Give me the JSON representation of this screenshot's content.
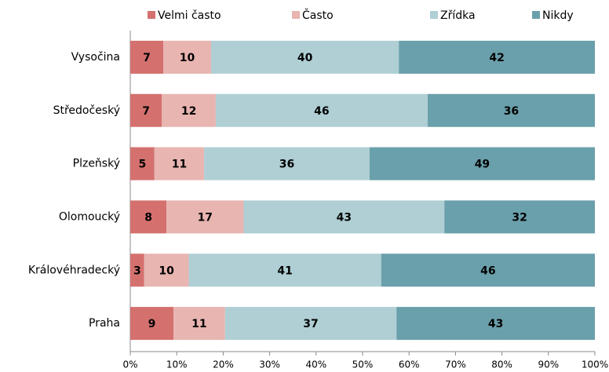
{
  "chart_data": {
    "type": "stacked_bar_horizontal",
    "categories": [
      "Vysočina",
      "Středočeský",
      "Plzeňský",
      "Olomoucký",
      "Královéhradecký",
      "Praha"
    ],
    "series": [
      {
        "name": "Velmi často",
        "color": "#d4716f",
        "values": [
          7.1,
          6.8,
          5.2,
          7.8,
          3.0,
          9.3
        ],
        "value_labels": [
          "7",
          "7",
          "5",
          "8",
          "3",
          "9"
        ]
      },
      {
        "name": "Často",
        "color": "#e8b5b1",
        "values": [
          10.3,
          11.6,
          10.7,
          16.6,
          9.6,
          11.1
        ],
        "value_labels": [
          "10",
          "12",
          "11",
          "17",
          "10",
          "11"
        ]
      },
      {
        "name": "Zřídka",
        "color": "#afcfd5",
        "values": [
          40.4,
          45.6,
          35.6,
          43.2,
          41.4,
          36.9
        ],
        "value_labels": [
          "40",
          "46",
          "36",
          "43",
          "41",
          "37"
        ]
      },
      {
        "name": "Nikdy",
        "color": "#6aa0ab",
        "values": [
          42.2,
          36.0,
          48.5,
          32.4,
          46.0,
          42.7
        ],
        "value_labels": [
          "42",
          "36",
          "49",
          "32",
          "46",
          "43"
        ]
      }
    ],
    "xlim": [
      0,
      100
    ],
    "xticks": [
      {
        "value": 0,
        "label": "0%"
      },
      {
        "value": 10,
        "label": "10%"
      },
      {
        "value": 20,
        "label": "20%"
      },
      {
        "value": 30,
        "label": "30%"
      },
      {
        "value": 40,
        "label": "40%"
      },
      {
        "value": 50,
        "label": "50%"
      },
      {
        "value": 60,
        "label": "60%"
      },
      {
        "value": 70,
        "label": "70%"
      },
      {
        "value": 80,
        "label": "80%"
      },
      {
        "value": 90,
        "label": "90%"
      },
      {
        "value": 100,
        "label": "100%"
      }
    ],
    "legend": "top"
  }
}
